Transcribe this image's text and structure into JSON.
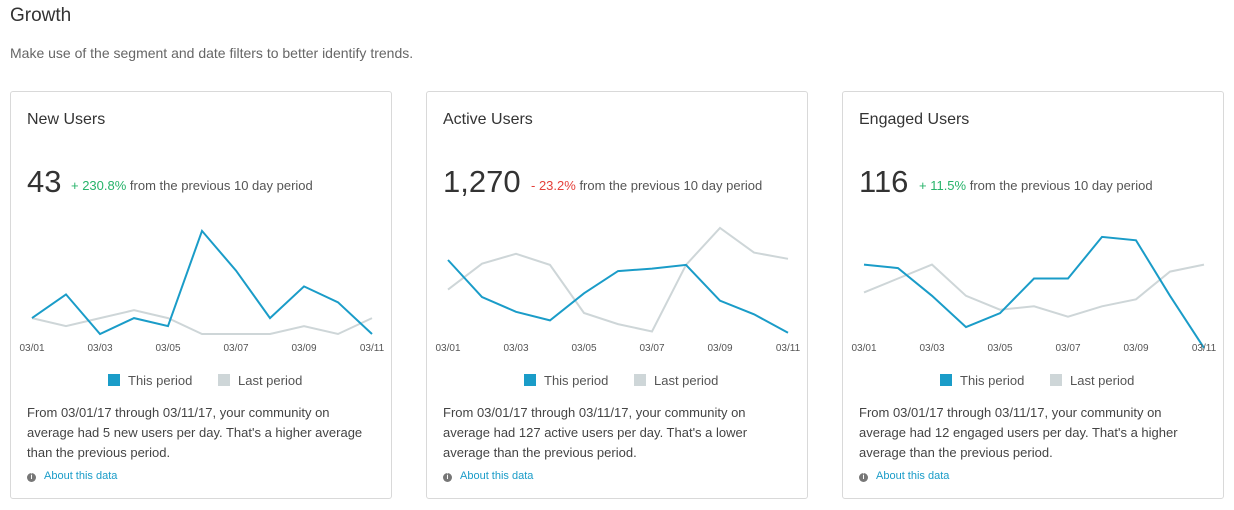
{
  "page": {
    "title": "Growth",
    "subtitle": "Make use of the segment and date filters to better identify trends."
  },
  "colors": {
    "this_period": "#1a9cc8",
    "last_period": "#ced6d8"
  },
  "cards": [
    {
      "title": "New Users",
      "value": "43",
      "change": "+ 230.8%",
      "change_dir": "pos",
      "change_text": "from the previous 10 day period",
      "legend_this": "This period",
      "legend_last": "Last period",
      "description": "From 03/01/17 through 03/11/17, your community on average had 5 new users per day. That's a higher average than the previous period.",
      "about": "About this data"
    },
    {
      "title": "Active Users",
      "value": "1,270",
      "change": "- 23.2%",
      "change_dir": "neg",
      "change_text": "from the previous 10 day period",
      "legend_this": "This period",
      "legend_last": "Last period",
      "description": "From 03/01/17 through 03/11/17, your community on average had 127 active users per day. That's a lower average than the previous period.",
      "about": "About this data"
    },
    {
      "title": "Engaged Users",
      "value": "116",
      "change": "+ 11.5%",
      "change_dir": "pos",
      "change_text": "from the previous 10 day period",
      "legend_this": "This period",
      "legend_last": "Last period",
      "description": "From 03/01/17 through 03/11/17, your community on average had 12 engaged users per day. That's a higher average than the previous period.",
      "about": "About this data"
    }
  ],
  "chart_data": [
    {
      "type": "line",
      "title": "New Users",
      "x": [
        "03/01",
        "03/02",
        "03/03",
        "03/04",
        "03/05",
        "03/06",
        "03/07",
        "03/08",
        "03/09",
        "03/10",
        "03/11"
      ],
      "tick_labels": [
        "03/01",
        "03/03",
        "03/05",
        "03/07",
        "03/09",
        "03/11"
      ],
      "ylim": [
        0,
        14
      ],
      "grid": false,
      "legend": "bottom-center",
      "series": [
        {
          "name": "This period",
          "values": [
            2,
            5,
            0,
            2,
            1,
            13,
            8,
            2,
            6,
            4,
            0
          ]
        },
        {
          "name": "Last period",
          "values": [
            2,
            1,
            2,
            3,
            2,
            0,
            0,
            0,
            1,
            0,
            2
          ]
        }
      ]
    },
    {
      "type": "line",
      "title": "Active Users",
      "x": [
        "03/01",
        "03/02",
        "03/03",
        "03/04",
        "03/05",
        "03/06",
        "03/07",
        "03/08",
        "03/09",
        "03/10",
        "03/11"
      ],
      "tick_labels": [
        "03/01",
        "03/03",
        "03/05",
        "03/07",
        "03/09",
        "03/11"
      ],
      "ylim": [
        85,
        175
      ],
      "grid": false,
      "legend": "bottom-center",
      "series": [
        {
          "name": "This period",
          "values": [
            145,
            115,
            103,
            96,
            118,
            136,
            138,
            141,
            112,
            101,
            86
          ]
        },
        {
          "name": "Last period",
          "values": [
            121,
            142,
            150,
            141,
            102,
            93,
            87,
            141,
            171,
            151,
            146
          ]
        }
      ]
    },
    {
      "type": "line",
      "title": "Engaged Users",
      "x": [
        "03/01",
        "03/02",
        "03/03",
        "03/04",
        "03/05",
        "03/06",
        "03/07",
        "03/08",
        "03/09",
        "03/10",
        "03/11"
      ],
      "tick_labels": [
        "03/01",
        "03/03",
        "03/05",
        "03/07",
        "03/09",
        "03/11"
      ],
      "ylim": [
        4,
        20
      ],
      "grid": false,
      "legend": "bottom-center",
      "series": [
        {
          "name": "This period",
          "values": [
            14,
            13.5,
            9.5,
            5,
            7,
            12,
            12,
            18,
            17.5,
            9.5,
            2
          ]
        },
        {
          "name": "Last period",
          "values": [
            10,
            12,
            14,
            9.5,
            7.5,
            8,
            6.5,
            8,
            9,
            13,
            14
          ]
        }
      ]
    }
  ]
}
